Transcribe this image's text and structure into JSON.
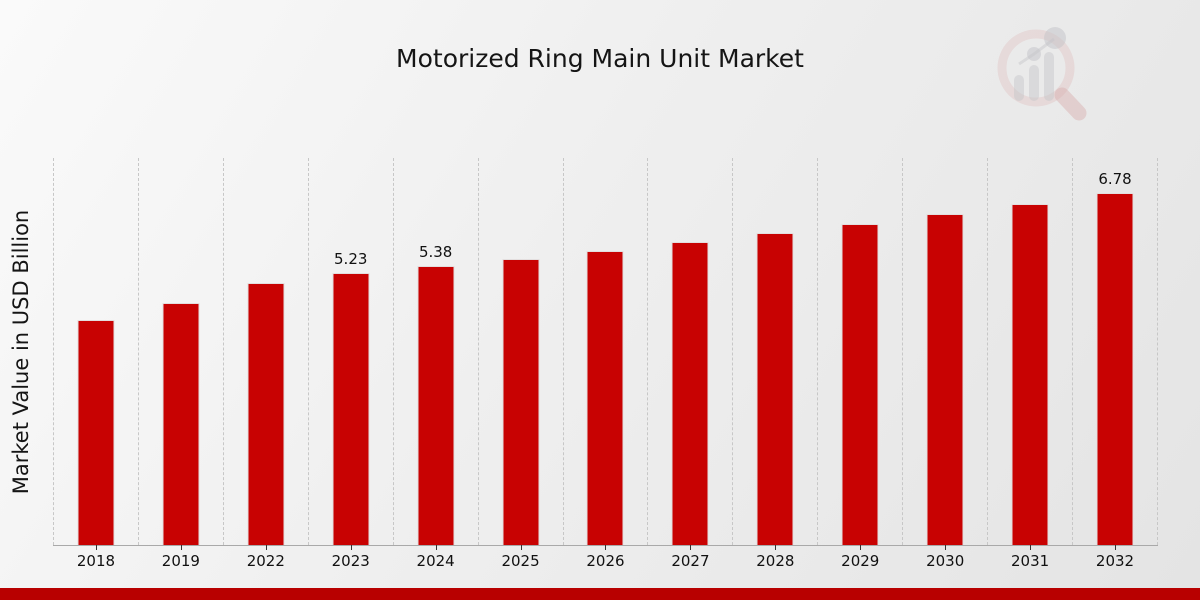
{
  "page": {
    "background_start": "#fafafa",
    "background_end": "#e4e4e4",
    "footer_bar_color": "#b80000"
  },
  "chart": {
    "title": "Motorized Ring Main Unit Market",
    "ylabel": "Market Value in USD Billion",
    "bar_color": "#c80202",
    "gridline_color": "#c7c7c7",
    "axis_color": "#a9a9a9"
  },
  "chart_data": {
    "type": "bar",
    "title": "Motorized Ring Main Unit Market",
    "xlabel": "",
    "ylabel": "Market Value in USD Billion",
    "categories": [
      "2018",
      "2019",
      "2022",
      "2023",
      "2024",
      "2025",
      "2026",
      "2027",
      "2028",
      "2029",
      "2030",
      "2031",
      "2032"
    ],
    "values": [
      4.34,
      4.66,
      5.05,
      5.23,
      5.38,
      5.51,
      5.66,
      5.84,
      6.01,
      6.18,
      6.38,
      6.57,
      6.78
    ],
    "data_labels": {
      "2023": "5.23",
      "2024": "5.38",
      "2032": "6.78"
    },
    "ylim": [
      0,
      7.45
    ],
    "grid": "vertical dashed lines at category boundaries",
    "legend": "none",
    "series_color": "#c80202"
  }
}
